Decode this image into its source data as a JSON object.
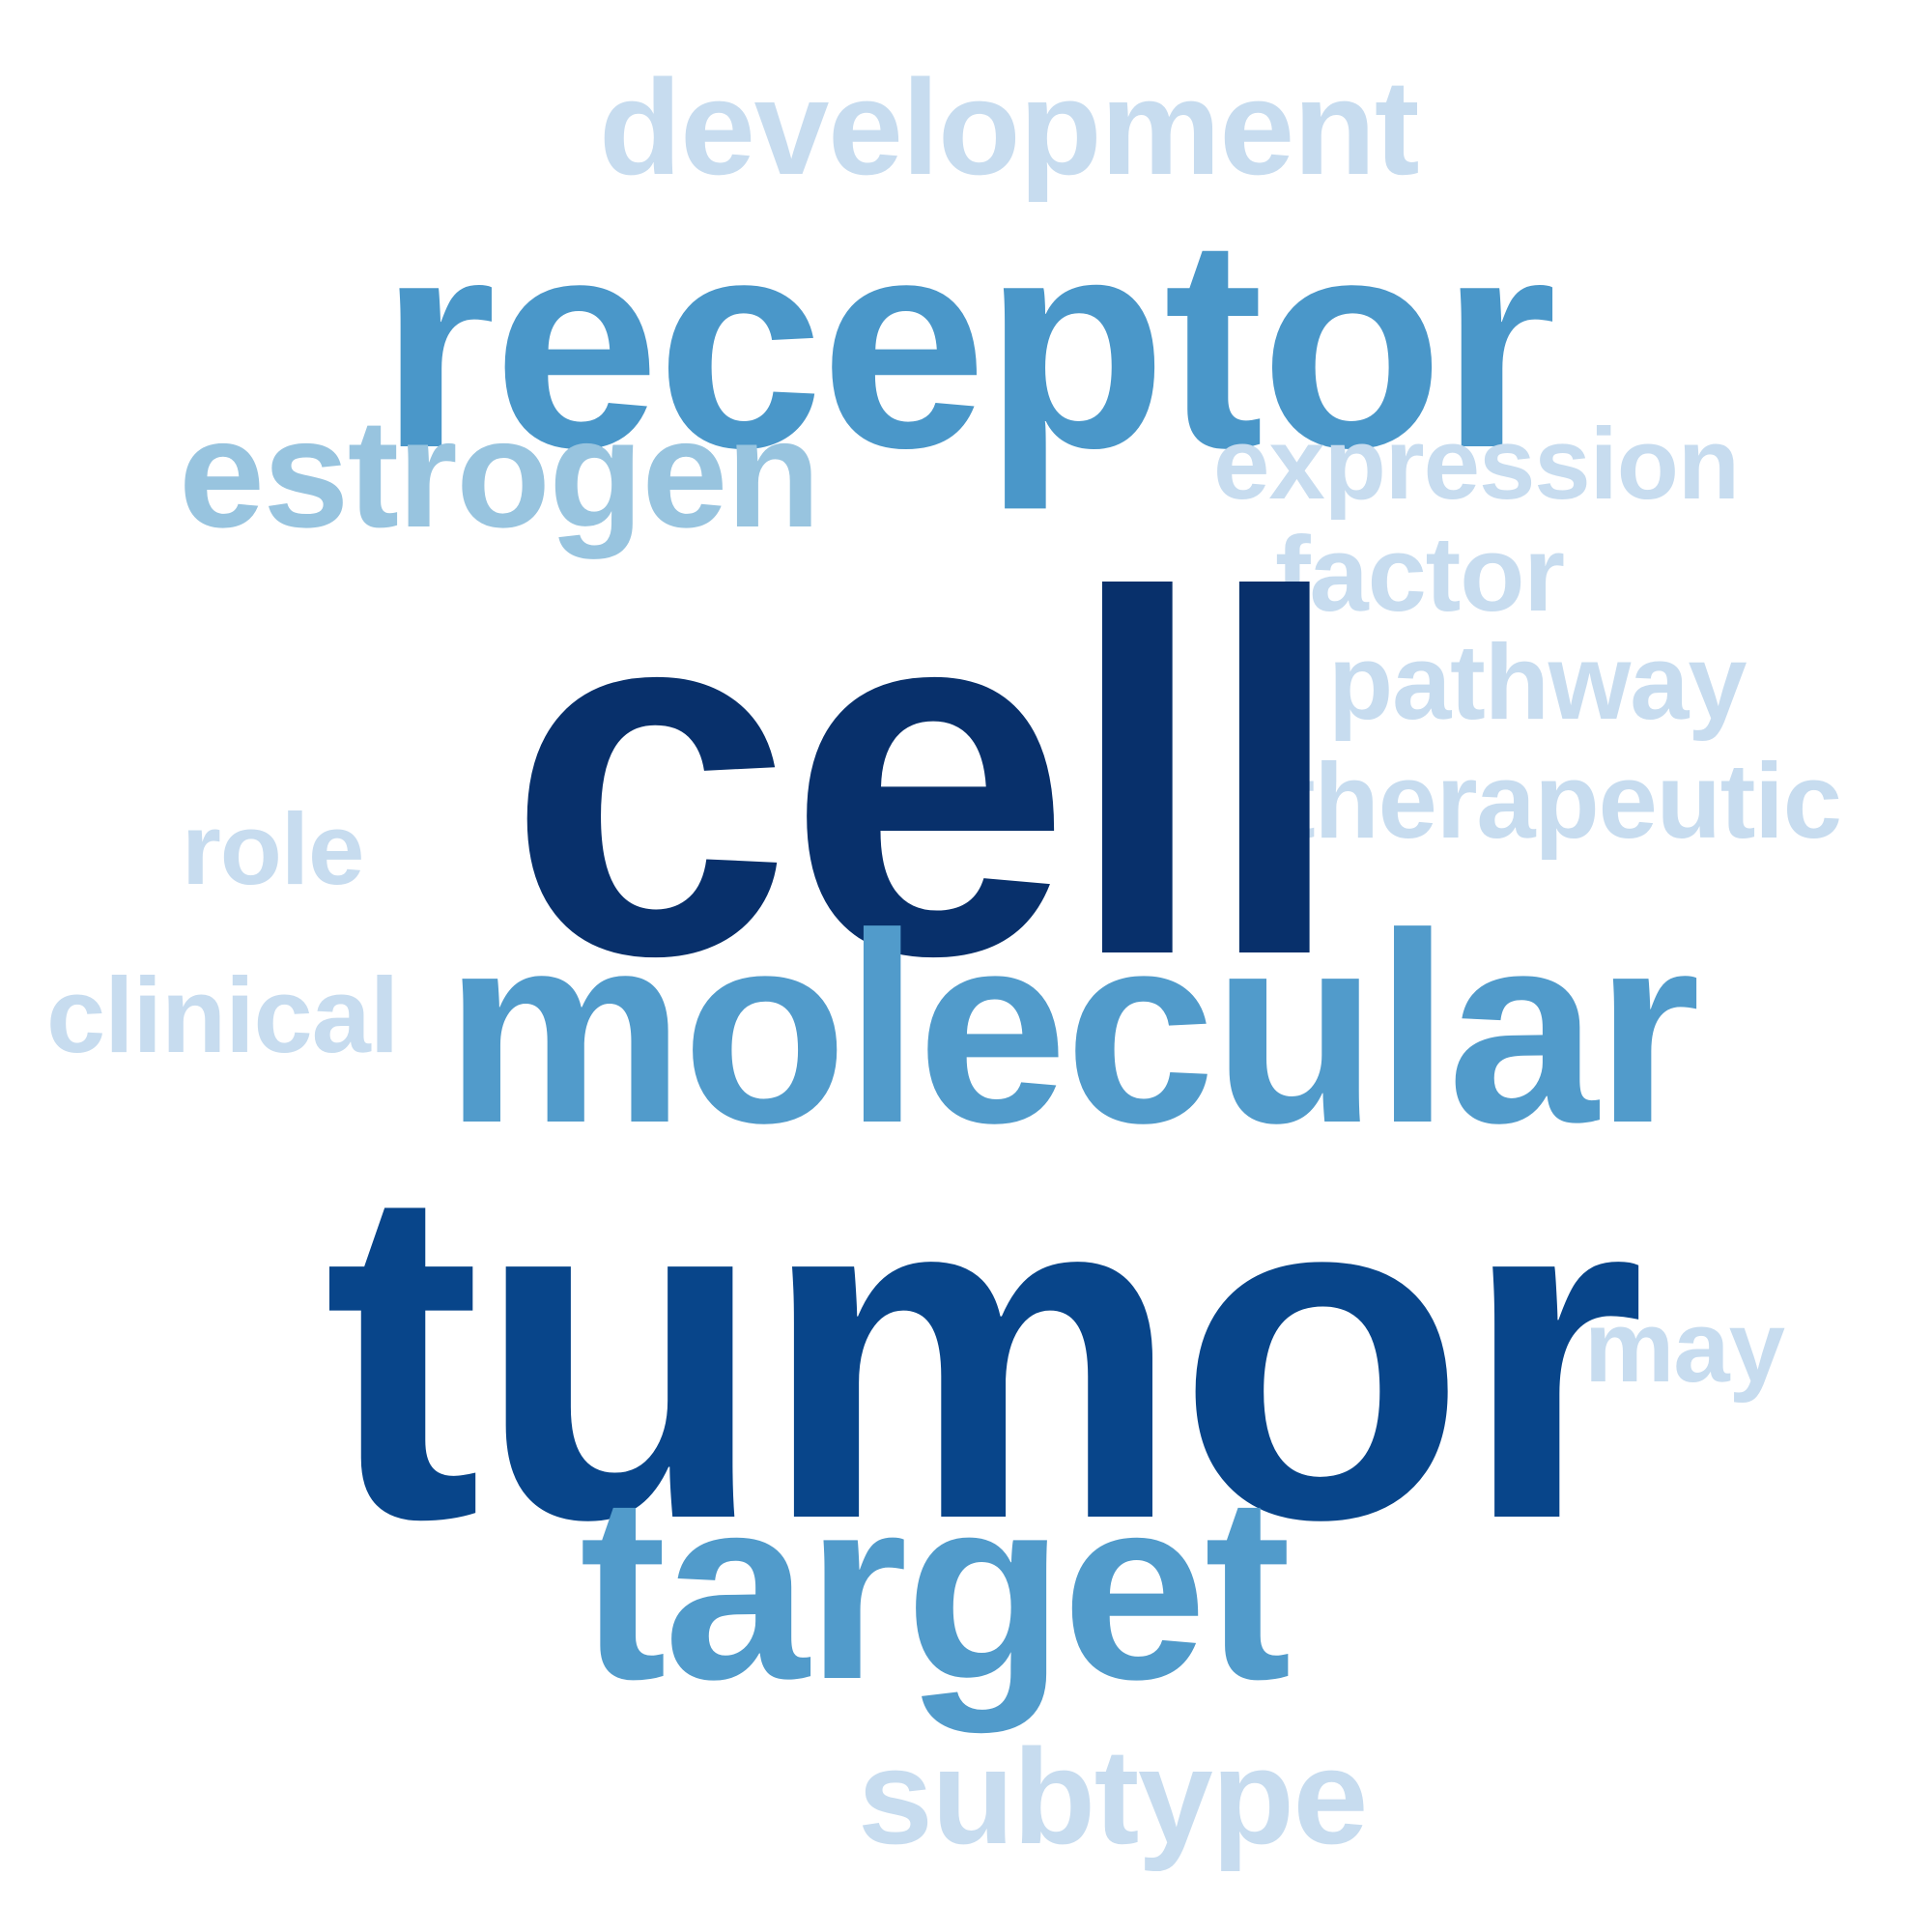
{
  "words": {
    "cell": {
      "text": "cell",
      "color": "#08306b"
    },
    "tumor": {
      "text": "tumor",
      "color": "#08458a"
    },
    "receptor": {
      "text": "receptor",
      "color": "#4a97c9"
    },
    "molecular": {
      "text": "molecular",
      "color": "#519bcb"
    },
    "target": {
      "text": "target",
      "color": "#519bcb"
    },
    "estrogen": {
      "text": "estrogen",
      "color": "#98c4df"
    },
    "development": {
      "text": "development",
      "color": "#c7dcef"
    },
    "expression": {
      "text": "expression",
      "color": "#c7dcef"
    },
    "factor": {
      "text": "factor",
      "color": "#c7dcef"
    },
    "pathway": {
      "text": "pathway",
      "color": "#c7dcef"
    },
    "therapeutic": {
      "text": "therapeutic",
      "color": "#c7dcef"
    },
    "role": {
      "text": "role",
      "color": "#c7dcef"
    },
    "clinical": {
      "text": "clinical",
      "color": "#c7dcef"
    },
    "may": {
      "text": "may",
      "color": "#c7dcef"
    },
    "subtype": {
      "text": "subtype",
      "color": "#c7dcef"
    }
  }
}
